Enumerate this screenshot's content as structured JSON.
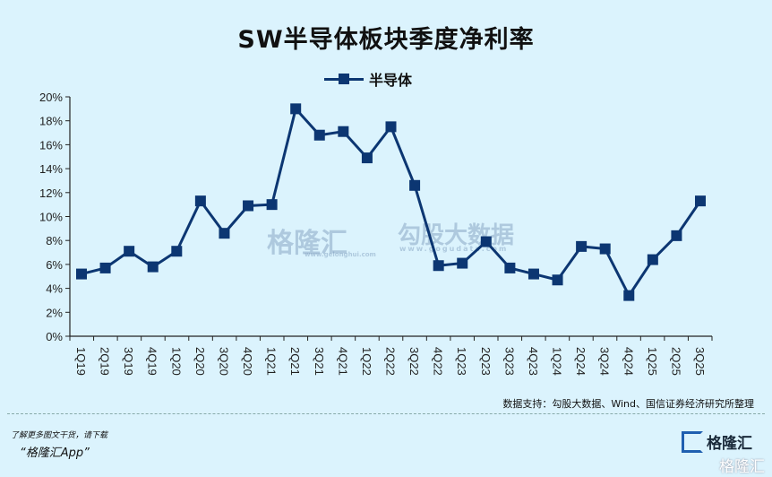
{
  "chart_data": {
    "type": "line",
    "title": "SW半导体板块季度净利率",
    "xlabel": "",
    "ylabel": "",
    "ylim": [
      0,
      20
    ],
    "yticks": [
      "0%",
      "2%",
      "4%",
      "6%",
      "8%",
      "10%",
      "12%",
      "14%",
      "16%",
      "18%",
      "20%"
    ],
    "legend": "top",
    "grid": false,
    "categories": [
      "1Q19",
      "2Q19",
      "3Q19",
      "4Q19",
      "1Q20",
      "2Q20",
      "3Q20",
      "4Q20",
      "1Q21",
      "2Q21",
      "3Q21",
      "4Q21",
      "1Q22",
      "2Q22",
      "3Q22",
      "4Q22",
      "1Q23",
      "2Q23",
      "3Q23",
      "4Q23",
      "1Q24",
      "2Q24",
      "3Q24",
      "4Q24",
      "1Q25",
      "2Q25",
      "3Q25"
    ],
    "series": [
      {
        "name": "半导体",
        "color": "#0c3672",
        "values": [
          5.2,
          5.7,
          7.1,
          5.8,
          7.1,
          11.3,
          8.6,
          10.9,
          11.0,
          19.0,
          16.8,
          17.1,
          14.9,
          17.5,
          12.6,
          5.9,
          6.1,
          7.9,
          5.7,
          5.2,
          4.7,
          7.5,
          7.3,
          3.4,
          6.4,
          8.4,
          11.3
        ]
      }
    ]
  },
  "watermark": {
    "brand": "格隆汇",
    "brand_url": "www.gelonghui.com",
    "data": "勾股大数据",
    "data_url": "www.gogudata.com"
  },
  "footer": {
    "source": "数据支持：勾股大数据、Wind、国信证券经济研究所整理",
    "promo": "了解更多图文干货，请下载",
    "app": "“格隆汇App”",
    "logo": "格隆汇"
  }
}
